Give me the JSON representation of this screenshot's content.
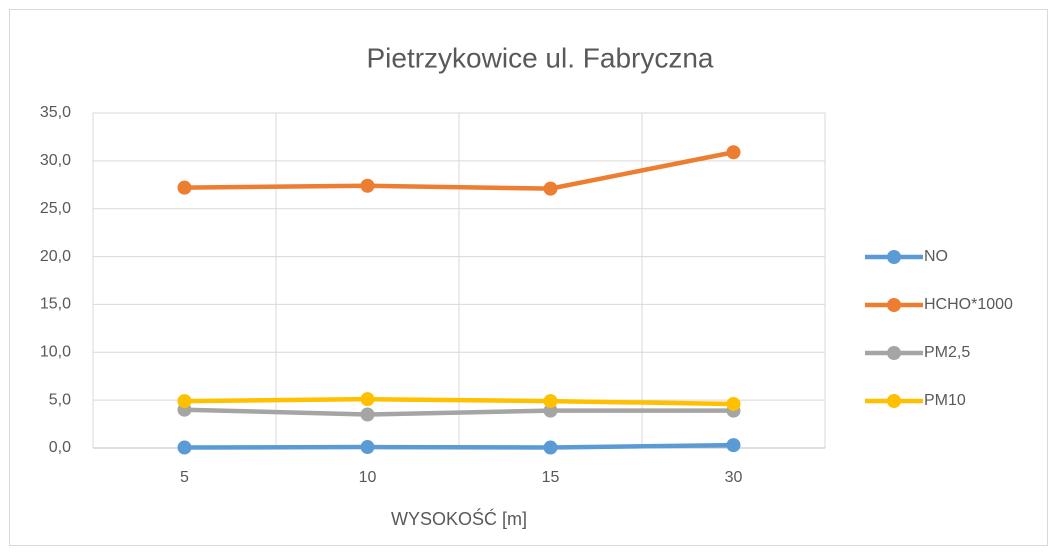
{
  "chart_data": {
    "type": "line",
    "title": "Pietrzykowice ul. Fabryczna",
    "x_label": "WYSOKOŚĆ  [m]",
    "categories": [
      "5",
      "10",
      "15",
      "30"
    ],
    "series": [
      {
        "name": "NO",
        "color": "#5b9bd5",
        "values": [
          0.05,
          0.1,
          0.05,
          0.3
        ]
      },
      {
        "name": "HCHO*1000",
        "color": "#ed7d31",
        "values": [
          27.2,
          27.4,
          27.1,
          30.9
        ]
      },
      {
        "name": "PM2,5",
        "color": "#a5a5a5",
        "values": [
          4.0,
          3.5,
          3.9,
          3.9
        ]
      },
      {
        "name": "PM10",
        "color": "#ffc000",
        "values": [
          4.9,
          5.1,
          4.9,
          4.6
        ]
      }
    ],
    "ylim": [
      0,
      35
    ],
    "yticks": [
      {
        "value": 0,
        "label": "0,0"
      },
      {
        "value": 5,
        "label": "5,0"
      },
      {
        "value": 10,
        "label": "10,0"
      },
      {
        "value": 15,
        "label": "15,0"
      },
      {
        "value": 20,
        "label": "20,0"
      },
      {
        "value": 25,
        "label": "25,0"
      },
      {
        "value": 30,
        "label": "30,0"
      },
      {
        "value": 35,
        "label": "35,0"
      }
    ],
    "grid": true,
    "legend": "right"
  }
}
